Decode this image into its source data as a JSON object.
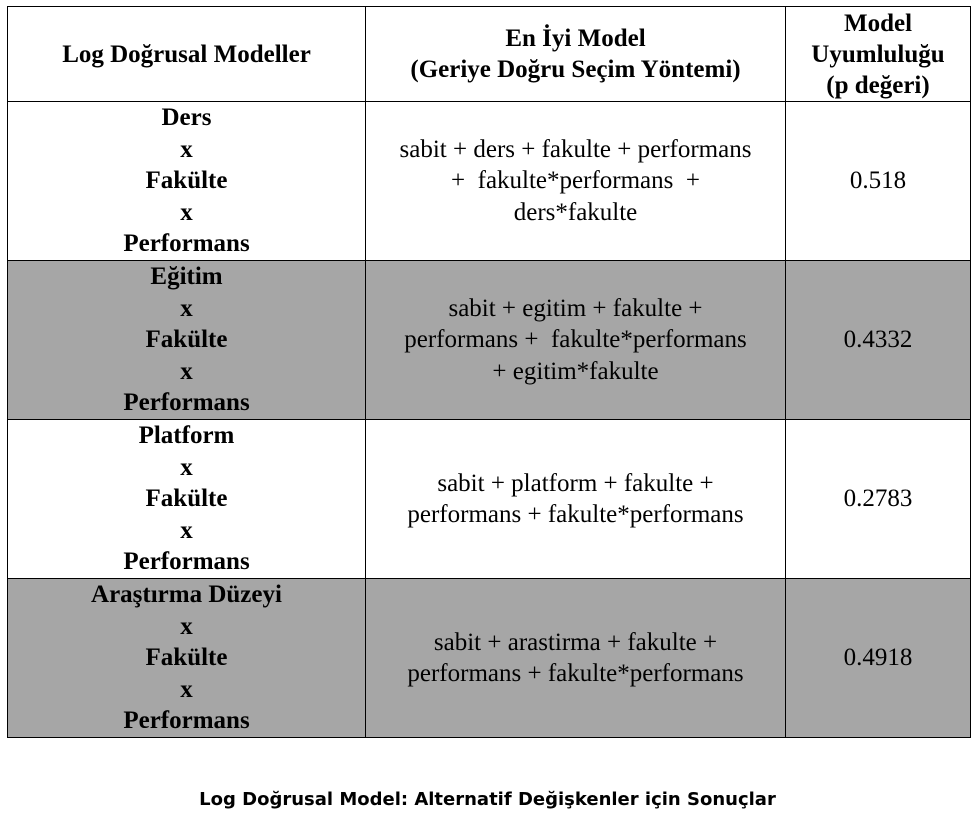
{
  "table": {
    "headers": {
      "col1": [
        "Log Doğrusal Modeller"
      ],
      "col2": [
        "En İyi Model",
        "(Geriye Doğru Seçim Yöntemi)"
      ],
      "col3": [
        "Model",
        "Uyumluluğu",
        "(p değeri)"
      ]
    },
    "rows": [
      {
        "model_lines": [
          "Ders",
          "x",
          "Fakülte",
          "x",
          "Performans"
        ],
        "formula_lines": [
          "sabit + ders + fakulte + performans",
          "+  fakulte*performans  +",
          "ders*fakulte"
        ],
        "p_value": "0.518",
        "shaded": false
      },
      {
        "model_lines": [
          "Eğitim",
          "x",
          "Fakülte",
          "x",
          "Performans"
        ],
        "formula_lines": [
          "sabit + egitim + fakulte +",
          "performans +  fakulte*performans",
          "+ egitim*fakulte"
        ],
        "p_value": "0.4332",
        "shaded": true
      },
      {
        "model_lines": [
          "Platform",
          "x",
          "Fakülte",
          "x",
          "Performans"
        ],
        "formula_lines": [
          "sabit + platform + fakulte +",
          "performans + fakulte*performans"
        ],
        "p_value": "0.2783",
        "shaded": false
      },
      {
        "model_lines": [
          "Araştırma Düzeyi",
          "x",
          "Fakülte",
          "x",
          "Performans"
        ],
        "formula_lines": [
          "sabit + arastirma + fakulte +",
          "performans + fakulte*performans"
        ],
        "p_value": "0.4918",
        "shaded": true
      }
    ],
    "colors": {
      "shaded_row": "#a6a6a6",
      "border": "#000000"
    }
  },
  "caption": "Log Doğrusal Model: Alternatif Değişkenler için Sonuçlar"
}
